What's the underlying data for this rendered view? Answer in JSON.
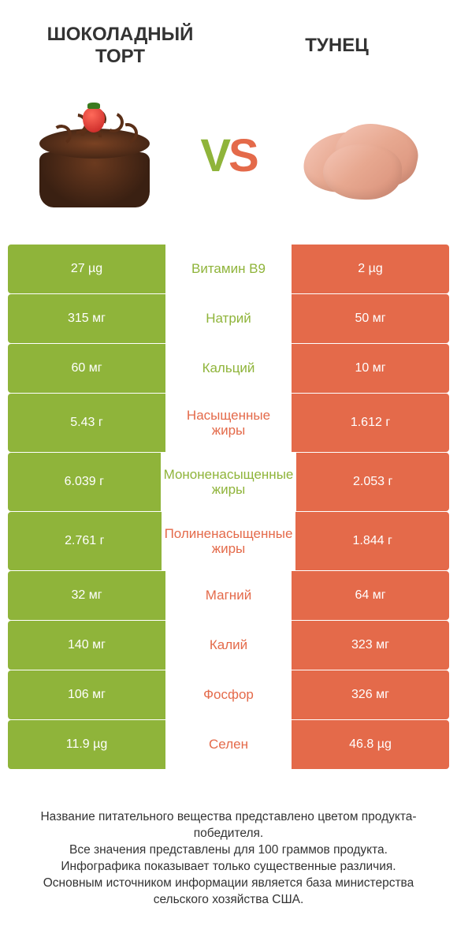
{
  "colors": {
    "green": "#8fb43a",
    "orange": "#e46a4a",
    "text": "#333333",
    "background": "#ffffff"
  },
  "header": {
    "left_title": "ШОКОЛАДНЫЙ ТОРТ",
    "right_title": "ТУНЕЦ",
    "vs_v": "V",
    "vs_s": "S"
  },
  "nutrients": [
    {
      "label": "Витамин B9",
      "winner": "green",
      "left": "27 µg",
      "right": "2 µg"
    },
    {
      "label": "Натрий",
      "winner": "green",
      "left": "315 мг",
      "right": "50 мг"
    },
    {
      "label": "Кальций",
      "winner": "green",
      "left": "60 мг",
      "right": "10 мг"
    },
    {
      "label": "Насыщенные жиры",
      "winner": "orange",
      "left": "5.43 г",
      "right": "1.612 г",
      "tall": true
    },
    {
      "label": "Мононенасыщенные жиры",
      "winner": "green",
      "left": "6.039 г",
      "right": "2.053 г",
      "tall": true
    },
    {
      "label": "Полиненасыщенные жиры",
      "winner": "orange",
      "left": "2.761 г",
      "right": "1.844 г",
      "tall": true
    },
    {
      "label": "Магний",
      "winner": "orange",
      "left": "32 мг",
      "right": "64 мг"
    },
    {
      "label": "Калий",
      "winner": "orange",
      "left": "140 мг",
      "right": "323 мг"
    },
    {
      "label": "Фосфор",
      "winner": "orange",
      "left": "106 мг",
      "right": "326 мг"
    },
    {
      "label": "Селен",
      "winner": "orange",
      "left": "11.9 µg",
      "right": "46.8 µg"
    }
  ],
  "footer": {
    "line1": "Название питательного вещества представлено цветом продукта-победителя.",
    "line2": "Все значения представлены для 100 граммов продукта.",
    "line3": "Инфографика показывает только существенные различия.",
    "line4": "Основным источником информации является база министерства сельского хозяйства США."
  }
}
